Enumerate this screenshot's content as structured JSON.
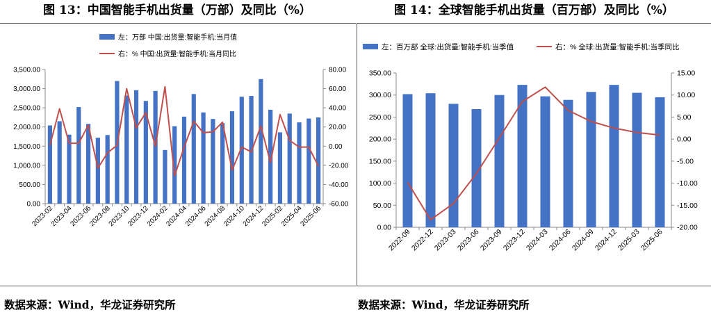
{
  "figures": [
    {
      "title": "图 13：中国智能手机出货量（万部）及同比（%）",
      "source": "数据来源：Wind，华龙证券研究所"
    },
    {
      "title": "图 14：全球智能手机出货量（百万部）及同比（%）",
      "source": "数据来源：Wind，华龙证券研究所"
    }
  ],
  "colors": {
    "bar": "#4472C4",
    "line": "#C0504D",
    "axis": "#8a8a8a"
  },
  "chart_data": [
    {
      "type": "bar",
      "combo": "bar+line",
      "title": "中国智能手机出货量（万部）及同比（%）",
      "legend": {
        "position": "top",
        "bar": "左：万部 中国:出货量:智能手机:当月值",
        "line": "右：% 中国:出货量:智能手机:当月同比"
      },
      "categories": [
        "2023-02",
        "2023-03",
        "2023-04",
        "2023-05",
        "2023-06",
        "2023-07",
        "2023-08",
        "2023-09",
        "2023-10",
        "2023-11",
        "2023-12",
        "2024-01",
        "2024-02",
        "2024-03",
        "2024-04",
        "2024-05",
        "2024-06",
        "2024-07",
        "2024-08",
        "2024-09",
        "2024-10",
        "2024-11",
        "2024-12",
        "2025-01",
        "2025-02",
        "2025-03",
        "2025-04",
        "2025-05",
        "2025-06"
      ],
      "x_tick_labels": [
        "2023-02",
        "2023-04",
        "2023-06",
        "2023-08",
        "2023-10",
        "2023-12",
        "2024-02",
        "2024-04",
        "2024-06",
        "2024-08",
        "2024-10",
        "2024-12",
        "2025-02",
        "2025-04",
        "2025-06"
      ],
      "series": [
        {
          "name": "左：万部 中国:出货量:智能手机:当月值",
          "axis": "left",
          "type": "bar",
          "values": [
            2040,
            2150,
            1800,
            2520,
            2080,
            1720,
            1790,
            3200,
            2820,
            2960,
            2680,
            2940,
            1400,
            2020,
            2270,
            2860,
            2380,
            2210,
            2100,
            2410,
            2790,
            2810,
            3250,
            2450,
            1860,
            2350,
            2120,
            2220,
            2250
          ]
        },
        {
          "name": "右：% 中国:出货量:智能手机:当月同比",
          "axis": "right",
          "type": "line",
          "values": [
            1,
            39,
            3,
            3,
            22,
            -23,
            -7,
            1,
            60,
            19,
            35,
            0,
            62,
            -31,
            -1,
            26,
            14,
            15,
            25,
            -25,
            -1,
            -6,
            21,
            -17,
            33,
            6,
            -1,
            -1,
            -21
          ]
        }
      ],
      "y_left": {
        "min": 0,
        "max": 3500,
        "step": 500,
        "ticks": [
          "0.00",
          "500.00",
          "1,000.00",
          "1,500.00",
          "2,000.00",
          "2,500.00",
          "3,000.00",
          "3,500.00"
        ]
      },
      "y_right": {
        "min": -60,
        "max": 80,
        "step": 20,
        "ticks": [
          "-60.00",
          "-40.00",
          "-20.00",
          "0.00",
          "20.00",
          "40.00",
          "60.00",
          "80.00"
        ]
      }
    },
    {
      "type": "bar",
      "combo": "bar+line",
      "title": "全球智能手机出货量（百万部）及同比（%）",
      "legend": {
        "position": "top",
        "bar": "左：百万部 全球:出货量:智能手机:当季值",
        "line": "右：% 全球:出货量:智能手机:当季同比"
      },
      "categories": [
        "2022-09",
        "2022-12",
        "2023-03",
        "2023-06",
        "2023-09",
        "2023-12",
        "2024-03",
        "2024-06",
        "2024-09",
        "2024-12",
        "2025-03",
        "2025-06"
      ],
      "x_tick_labels": [
        "2022-09",
        "2022-12",
        "2023-03",
        "2023-06",
        "2023-09",
        "2023-12",
        "2024-03",
        "2024-06",
        "2024-09",
        "2024-12",
        "2025-03",
        "2025-06"
      ],
      "series": [
        {
          "name": "左：百万部 全球:出货量:智能手机:当季值",
          "axis": "left",
          "type": "bar",
          "values": [
            302,
            304,
            280,
            268,
            300,
            323,
            297,
            289,
            307,
            323,
            305,
            295
          ]
        },
        {
          "name": "右：% 全球:出货量:智能手机:当季同比",
          "axis": "right",
          "type": "line",
          "values": [
            -9.8,
            -18.3,
            -14.6,
            -7.8,
            0.3,
            8.5,
            11.8,
            6.5,
            4.0,
            2.5,
            1.5,
            0.9
          ]
        }
      ],
      "y_left": {
        "min": 0,
        "max": 350,
        "step": 50,
        "ticks": [
          "0.00",
          "50.00",
          "100.00",
          "150.00",
          "200.00",
          "250.00",
          "300.00",
          "350.00"
        ]
      },
      "y_right": {
        "min": -20,
        "max": 15,
        "step": 5,
        "ticks": [
          "-20.00",
          "-15.00",
          "-10.00",
          "-5.00",
          "0.00",
          "5.00",
          "10.00",
          "15.00"
        ]
      }
    }
  ]
}
